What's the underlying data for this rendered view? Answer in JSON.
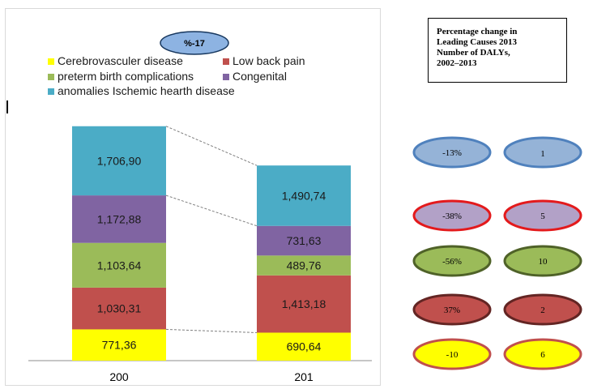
{
  "chart_data": {
    "type": "bar",
    "stacked": true,
    "categories": [
      "200",
      "201"
    ],
    "series": [
      {
        "name": "Cerebrovasculer disease",
        "color": "#ffff00",
        "values": [
          771.36,
          690.64
        ],
        "labels": [
          "771,36",
          "690,64"
        ]
      },
      {
        "name": "Low back pain",
        "color": "#c0504d",
        "values": [
          1030.31,
          1413.18
        ],
        "labels": [
          "1,030,31",
          "1,413,18"
        ]
      },
      {
        "name": "preterm birth complications",
        "color": "#9bbb59",
        "values": [
          1103.64,
          489.76
        ],
        "labels": [
          "1,103,64",
          "489,76"
        ]
      },
      {
        "name": "Congenital",
        "color": "#8064a2",
        "values": [
          1172.88,
          731.63
        ],
        "labels": [
          "1,172,88",
          "731,63"
        ]
      },
      {
        "name": "anomalies Ischemic hearth disease",
        "color": "#4bacc6",
        "values": [
          1706.9,
          1490.74
        ],
        "labels": [
          "1,706,90",
          "1,490,74"
        ]
      }
    ],
    "annotation": "%-17",
    "legend_position": "top",
    "grid": false
  },
  "info_box": {
    "lines": [
      "Percentage change in",
      "Leading Causes 2013",
      "Number of DALYs,",
      "2002–2013"
    ]
  },
  "bubbles": [
    {
      "left": "-13%",
      "right": "1",
      "fill": "#95b3d7",
      "stroke": "#4f81bd"
    },
    {
      "left": "-38%",
      "right": "5",
      "fill": "#b2a1c7",
      "stroke": "#e31a1c"
    },
    {
      "left": "-56%",
      "right": "10",
      "fill": "#9bbb59",
      "stroke": "#4f6228"
    },
    {
      "left": "37%",
      "right": "2",
      "fill": "#c0504d",
      "stroke": "#632523"
    },
    {
      "left": "-10",
      "right": "6",
      "fill": "#ffff00",
      "stroke": "#c0504d"
    }
  ]
}
